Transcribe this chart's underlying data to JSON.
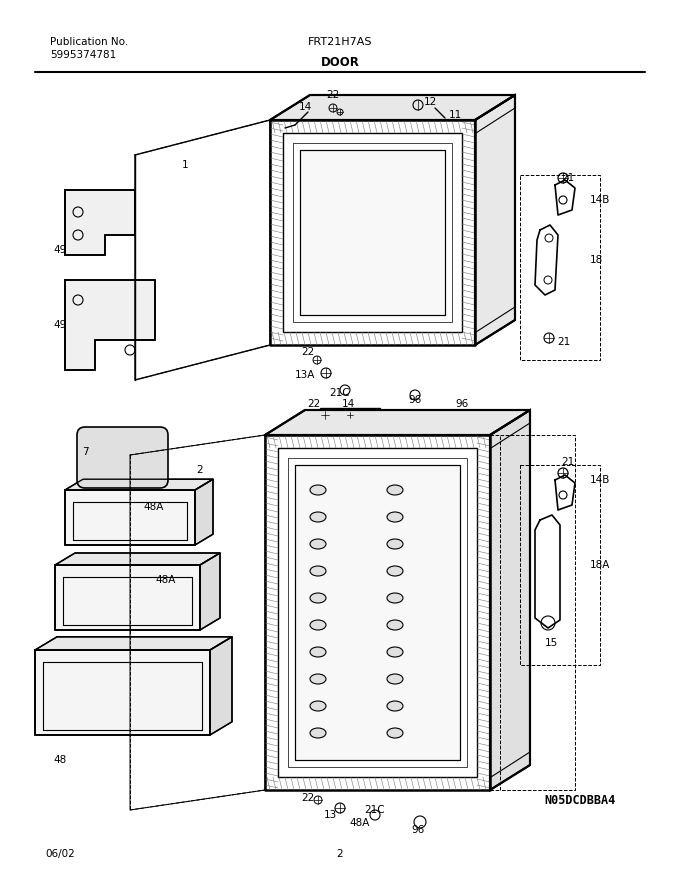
{
  "title": "FRT21H7AS",
  "section": "DOOR",
  "pub_no_label": "Publication No.",
  "pub_no": "5995374781",
  "page": "2",
  "date": "06/02",
  "image_id": "N05DCDBBA4",
  "bg_color": "#ffffff",
  "line_color": "#000000"
}
